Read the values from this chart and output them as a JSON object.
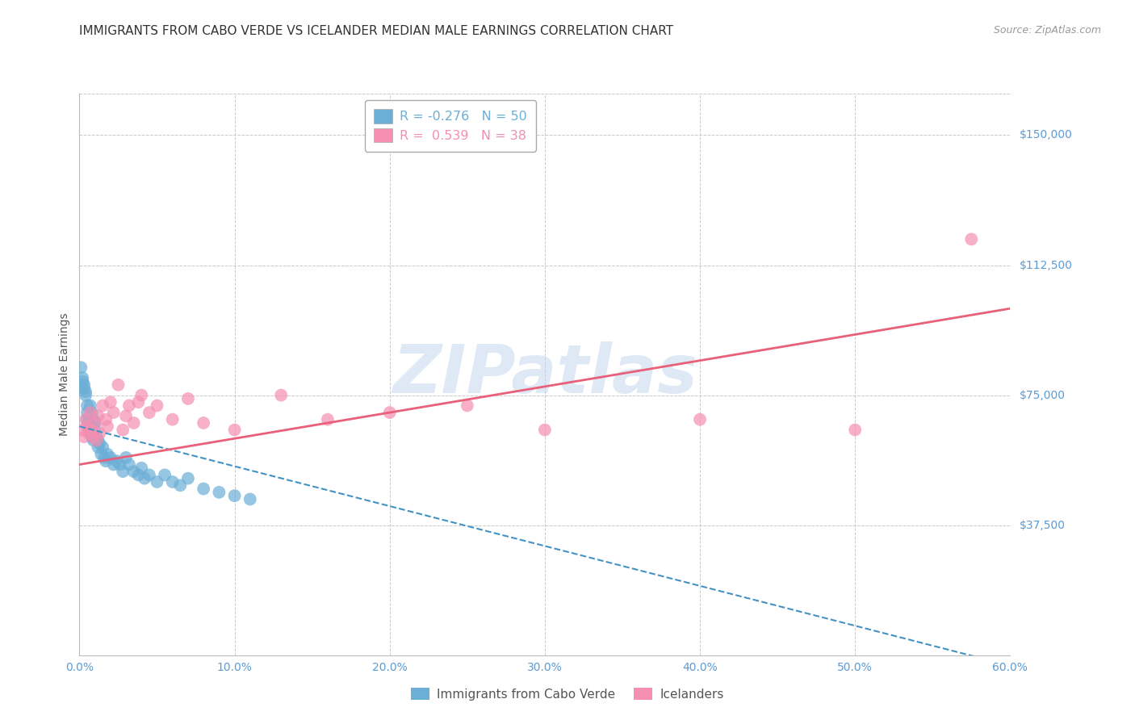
{
  "title": "IMMIGRANTS FROM CABO VERDE VS ICELANDER MEDIAN MALE EARNINGS CORRELATION CHART",
  "source": "Source: ZipAtlas.com",
  "ylabel": "Median Male Earnings",
  "x_tick_labels": [
    "0.0%",
    "10.0%",
    "20.0%",
    "30.0%",
    "40.0%",
    "50.0%",
    "60.0%"
  ],
  "x_tick_values": [
    0.0,
    0.1,
    0.2,
    0.3,
    0.4,
    0.5,
    0.6
  ],
  "y_tick_labels": [
    "$37,500",
    "$75,000",
    "$112,500",
    "$150,000"
  ],
  "y_tick_values": [
    37500,
    75000,
    112500,
    150000
  ],
  "xlim": [
    0.0,
    0.6
  ],
  "ylim": [
    0,
    162000
  ],
  "legend_entries": [
    {
      "label_r": "R = -0.276",
      "label_n": "N = 50",
      "color": "#6BAED6"
    },
    {
      "label_r": "R =  0.539",
      "label_n": "N = 38",
      "color": "#F48FB1"
    }
  ],
  "cabo_verde_x": [
    0.001,
    0.002,
    0.002,
    0.003,
    0.003,
    0.004,
    0.004,
    0.005,
    0.005,
    0.005,
    0.006,
    0.006,
    0.007,
    0.007,
    0.008,
    0.008,
    0.009,
    0.009,
    0.01,
    0.01,
    0.011,
    0.012,
    0.012,
    0.013,
    0.014,
    0.015,
    0.016,
    0.017,
    0.018,
    0.02,
    0.022,
    0.024,
    0.026,
    0.028,
    0.03,
    0.032,
    0.035,
    0.038,
    0.04,
    0.042,
    0.045,
    0.05,
    0.055,
    0.06,
    0.065,
    0.07,
    0.08,
    0.09,
    0.1,
    0.11
  ],
  "cabo_verde_y": [
    83000,
    80000,
    79000,
    78000,
    77000,
    76000,
    75000,
    72000,
    70000,
    68000,
    67000,
    65000,
    64000,
    72000,
    63000,
    70000,
    68000,
    62000,
    67000,
    65000,
    63000,
    62000,
    60000,
    61000,
    58000,
    60000,
    57000,
    56000,
    58000,
    57000,
    55000,
    56000,
    55000,
    53000,
    57000,
    55000,
    53000,
    52000,
    54000,
    51000,
    52000,
    50000,
    52000,
    50000,
    49000,
    51000,
    48000,
    47000,
    46000,
    45000
  ],
  "icelander_x": [
    0.002,
    0.003,
    0.004,
    0.005,
    0.006,
    0.007,
    0.008,
    0.009,
    0.01,
    0.011,
    0.012,
    0.013,
    0.015,
    0.017,
    0.018,
    0.02,
    0.022,
    0.025,
    0.028,
    0.03,
    0.032,
    0.035,
    0.038,
    0.04,
    0.045,
    0.05,
    0.06,
    0.07,
    0.08,
    0.1,
    0.13,
    0.16,
    0.2,
    0.25,
    0.3,
    0.4,
    0.5,
    0.575
  ],
  "icelander_y": [
    65000,
    63000,
    68000,
    66000,
    64000,
    70000,
    65000,
    63000,
    67000,
    62000,
    69000,
    64000,
    72000,
    68000,
    66000,
    73000,
    70000,
    78000,
    65000,
    69000,
    72000,
    67000,
    73000,
    75000,
    70000,
    72000,
    68000,
    74000,
    67000,
    65000,
    75000,
    68000,
    70000,
    72000,
    65000,
    68000,
    65000,
    120000
  ],
  "cabo_verde_color": "#6BAED6",
  "icelander_color": "#F48FB1",
  "cabo_verde_line_color": "#4292C6",
  "icelander_line_color": "#E8607A",
  "watermark_text": "ZIPatlas",
  "watermark_color": "#C6D8EE",
  "watermark_alpha": 0.55,
  "background_color": "#FFFFFF",
  "grid_color": "#C8C8C8",
  "axis_color": "#5B9BD5",
  "title_color": "#333333",
  "title_fontsize": 11,
  "source_fontsize": 9,
  "label_fontsize": 10,
  "tick_fontsize": 10
}
